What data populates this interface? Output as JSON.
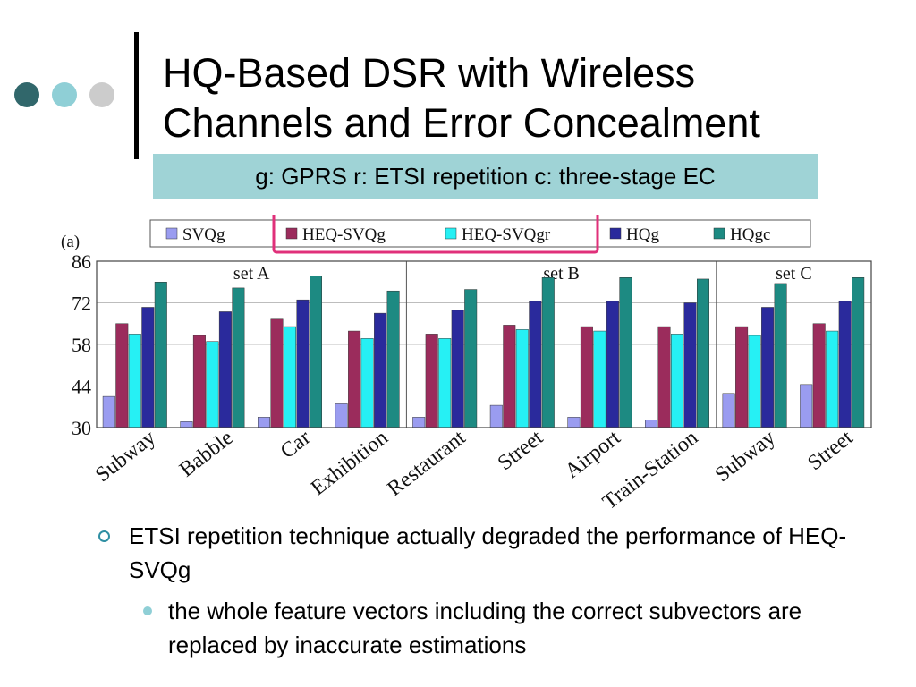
{
  "slide": {
    "title_line1": "HQ-Based DSR with Wireless",
    "title_line2": "Channels and Error Concealment",
    "subtitle": "g: GPRS r: ETSI repetition c: three-stage EC",
    "bullet_1": "ETSI repetition technique actually degraded the performance of HEQ-SVQg",
    "bullet_1_1": "the whole feature vectors including the correct subvectors are replaced by inaccurate estimations"
  },
  "colors": {
    "dot_1": "#31676b",
    "dot_2": "#8fcfd6",
    "dot_3": "#cccccc",
    "subtitle_bg": "#9fd3d6",
    "highlight_box": "#e0307a",
    "bullet_marker": "#2f8fa3"
  },
  "chart_data": {
    "type": "bar",
    "panel_label": "(a)",
    "ylim": [
      30,
      86
    ],
    "yticks": [
      30,
      44,
      58,
      72,
      86
    ],
    "categories": [
      "Subway",
      "Babble",
      "Car",
      "Exhibition",
      "Restaurant",
      "Street",
      "Airport",
      "Train-Station",
      "Subway",
      "Street"
    ],
    "groups": [
      {
        "label": "set A",
        "start": 0,
        "end": 3
      },
      {
        "label": "set B",
        "start": 4,
        "end": 7
      },
      {
        "label": "set C",
        "start": 8,
        "end": 9
      }
    ],
    "series": [
      {
        "name": "SVQg",
        "color": "#9a9cf0",
        "values": [
          40.5,
          32,
          33.5,
          38,
          33.5,
          37.5,
          33.5,
          32.5,
          41.5,
          44.5
        ]
      },
      {
        "name": "HEQ-SVQg",
        "color": "#9b2c5c",
        "values": [
          65,
          61,
          66.5,
          62.5,
          61.5,
          64.5,
          64,
          64,
          64,
          65
        ]
      },
      {
        "name": "HEQ-SVQgr",
        "color": "#26f0f4",
        "values": [
          61.5,
          59,
          64,
          60,
          60,
          63,
          62.5,
          61.5,
          61,
          62.5
        ]
      },
      {
        "name": "HQg",
        "color": "#2a2a9c",
        "values": [
          70.5,
          69,
          73,
          68.5,
          69.5,
          72.5,
          72.5,
          72,
          70.5,
          72.5
        ]
      },
      {
        "name": "HQgc",
        "color": "#1d8a82",
        "values": [
          79,
          77,
          81,
          76,
          76.5,
          80.5,
          80.5,
          80,
          78.5,
          80.5
        ]
      }
    ],
    "highlighted_legend_entries": [
      "HEQ-SVQg",
      "HEQ-SVQgr"
    ]
  }
}
